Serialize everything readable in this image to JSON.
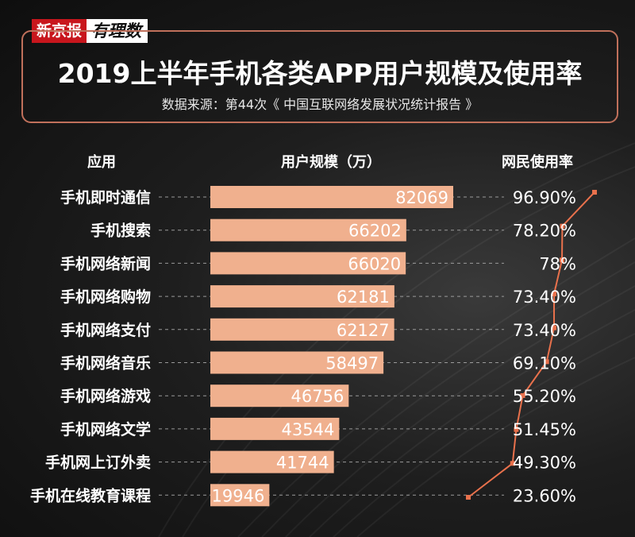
{
  "brand": {
    "newspaper": "新京报",
    "column": "有理数"
  },
  "header": {
    "title": "2019上半年手机各类APP用户规模及使用率",
    "source": "数据来源：第44次《 中国互联网络发展状况统计报告 》"
  },
  "columns": {
    "app": "应用",
    "users": "用户规模（万）",
    "rate": "网民使用率"
  },
  "colors": {
    "bar": "#f0b08e",
    "line": "#e9714c",
    "accent_border": "#c0705b",
    "brand_red": "#c8161d"
  },
  "chart_data": {
    "type": "bar",
    "orientation": "horizontal",
    "categories": [
      "手机即时通信",
      "手机搜索",
      "手机网络新闻",
      "手机网络购物",
      "手机网络支付",
      "手机网络音乐",
      "手机网络游戏",
      "手机网络文学",
      "手机网上订外卖",
      "手机在线教育课程"
    ],
    "series": [
      {
        "name": "用户规模（万）",
        "values": [
          82069,
          66202,
          66020,
          62181,
          62127,
          58497,
          46756,
          43544,
          41744,
          19946
        ]
      },
      {
        "name": "网民使用率",
        "values": [
          96.9,
          78.2,
          78,
          73.4,
          73.4,
          69.1,
          55.2,
          51.45,
          49.3,
          23.6
        ]
      }
    ],
    "value_labels": [
      "82069",
      "66202",
      "66020",
      "62181",
      "62127",
      "58497",
      "46756",
      "43544",
      "41744",
      "19946"
    ],
    "rate_labels": [
      "96.90%",
      "78.20%",
      "78%",
      "73.40%",
      "73.40%",
      "69.10%",
      "55.20%",
      "51.45%",
      "49.30%",
      "23.60%"
    ],
    "legend": "none",
    "grid": false
  }
}
